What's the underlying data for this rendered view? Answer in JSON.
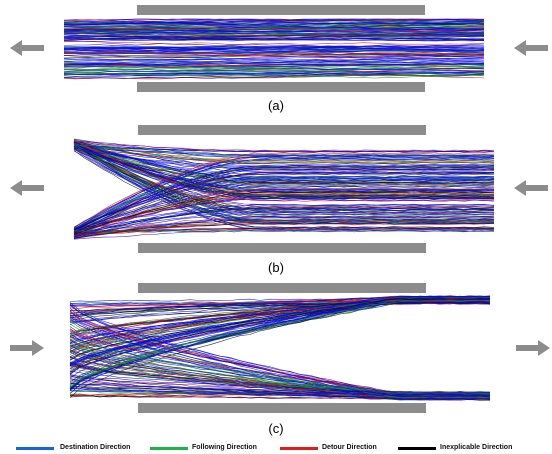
{
  "panels": [
    {
      "caption": "(a)",
      "flow": "left",
      "pattern": "straight"
    },
    {
      "caption": "(b)",
      "flow": "left",
      "pattern": "funnel-left"
    },
    {
      "caption": "(c)",
      "flow": "right",
      "pattern": "split-right"
    }
  ],
  "legend": [
    {
      "label": "Destination Direction",
      "color": "#1565d8"
    },
    {
      "label": "Following Direction",
      "color": "#1db34a"
    },
    {
      "label": "Detour Direction",
      "color": "#e01b1b"
    },
    {
      "label": "Inexplicable Direction",
      "color": "#000000"
    }
  ],
  "colors": {
    "wall": "#8c8c8c",
    "arrow": "#8c8c8c",
    "blue": "#0a0ad8",
    "green": "#168a2a",
    "red": "#d81818",
    "black": "#111111"
  }
}
